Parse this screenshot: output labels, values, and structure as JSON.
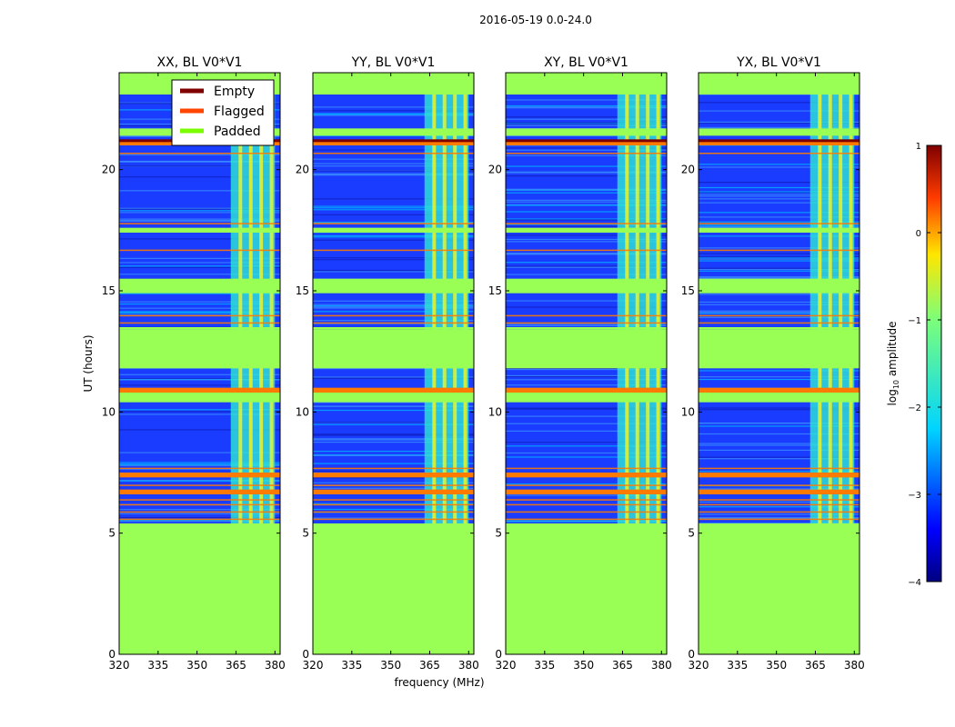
{
  "chart_data": {
    "type": "heatmap",
    "suptitle": "2016-05-19 0.0-24.0",
    "xlabel": "frequency (MHz)",
    "ylabel": "UT (hours)",
    "xlim": [
      320,
      382
    ],
    "ylim": [
      0,
      24
    ],
    "xticks": [
      320,
      335,
      350,
      365,
      380
    ],
    "yticks": [
      0,
      5,
      10,
      15,
      20
    ],
    "panels": [
      {
        "title": "XX, BL V0*V1"
      },
      {
        "title": "YY, BL V0*V1"
      },
      {
        "title": "XY, BL V0*V1"
      },
      {
        "title": "YX, BL V0*V1"
      }
    ],
    "legend": {
      "position": "top-right of first panel",
      "entries": [
        {
          "label": "Empty",
          "color": "#800000"
        },
        {
          "label": "Flagged",
          "color": "#ff4500"
        },
        {
          "label": "Padded",
          "color": "#7cfc00"
        }
      ]
    },
    "colorbar": {
      "label": "log10 amplitude",
      "label_base": "log",
      "label_sub": "10",
      "label_rest": " amplitude",
      "range": [
        -4,
        1
      ],
      "ticks": [
        {
          "value": 1,
          "label": "1"
        },
        {
          "value": 0,
          "label": "0"
        },
        {
          "value": -1,
          "label": "−1"
        },
        {
          "value": -2,
          "label": "−2"
        },
        {
          "value": -3,
          "label": "−3"
        },
        {
          "value": -4,
          "label": "−4"
        }
      ]
    },
    "padded_ut_ranges": [
      [
        0,
        5.4
      ],
      [
        13.4,
        13.5
      ],
      [
        11.8,
        13.4
      ],
      [
        14.9,
        15.5
      ],
      [
        17.4,
        17.6
      ],
      [
        21.4,
        21.7
      ]
    ],
    "flagged_ut_ranges": [
      [
        10.8,
        11.0
      ],
      [
        7.3,
        7.5
      ],
      [
        6.6,
        6.8
      ],
      [
        21.0,
        21.2
      ]
    ],
    "rfi_band_mhz": [
      363,
      380
    ]
  },
  "colors": {
    "padded": "#99ff55",
    "flagged": "#ff7a00",
    "empty": "#800000",
    "data_blue": "#1a3cff",
    "rfi_cyan": "#2ee6d6",
    "rfi_yellow": "#e8f52a"
  }
}
